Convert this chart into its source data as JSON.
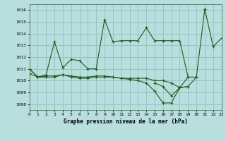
{
  "title": "Graphe pression niveau de la mer (hPa)",
  "bg_color": "#b8dede",
  "grid_color": "#88bbbb",
  "line_color": "#1a5c1a",
  "xlim": [
    0,
    23
  ],
  "ylim": [
    1007.5,
    1016.5
  ],
  "yticks": [
    1008,
    1009,
    1010,
    1011,
    1012,
    1013,
    1014,
    1015,
    1016
  ],
  "xtick_labels": [
    "0",
    "1",
    "2",
    "3",
    "4",
    "5",
    "6",
    "7",
    "8",
    "9",
    "10",
    "11",
    "12",
    "13",
    "14",
    "15",
    "16",
    "17",
    "18",
    "19",
    "20",
    "21",
    "22",
    "23"
  ],
  "series": [
    {
      "x": [
        0,
        1,
        2,
        3,
        4,
        5,
        6,
        7,
        8,
        9,
        10,
        11,
        12,
        13,
        14,
        15,
        16,
        17,
        18,
        19,
        20,
        21,
        22,
        23
      ],
      "y": [
        1011.0,
        1010.3,
        1010.5,
        1013.3,
        1011.1,
        1011.8,
        1011.7,
        1011.0,
        1011.0,
        1015.2,
        1013.3,
        1013.4,
        1013.4,
        1013.4,
        1014.5,
        1013.4,
        1013.4,
        1013.4,
        1013.4,
        1010.3,
        1010.3,
        1016.1,
        1012.9,
        1013.6
      ]
    },
    {
      "x": [
        0,
        1,
        2,
        3,
        4,
        5,
        6,
        7,
        8,
        9,
        10,
        11,
        12,
        13,
        14,
        15,
        16,
        17,
        18,
        19
      ],
      "y": [
        1010.6,
        1010.3,
        1010.3,
        1010.3,
        1010.5,
        1010.3,
        1010.2,
        1010.2,
        1010.3,
        1010.3,
        1010.3,
        1010.2,
        1010.2,
        1010.2,
        1010.2,
        1010.0,
        1010.0,
        1009.8,
        1009.4,
        1010.3
      ]
    },
    {
      "x": [
        0,
        1,
        2,
        3,
        4,
        5,
        6,
        7,
        8,
        9,
        10,
        11,
        12,
        13,
        14,
        15,
        16,
        17,
        18,
        19
      ],
      "y": [
        1011.0,
        1010.3,
        1010.4,
        1010.4,
        1010.5,
        1010.4,
        1010.3,
        1010.3,
        1010.4,
        1010.4,
        1010.3,
        1010.2,
        1010.1,
        1010.0,
        1009.8,
        1009.1,
        1008.1,
        1008.1,
        1009.4,
        1009.5
      ]
    },
    {
      "x": [
        15,
        16,
        17,
        18,
        19,
        20
      ],
      "y": [
        1009.8,
        1009.5,
        1008.7,
        1009.4,
        1009.5,
        1010.3
      ]
    }
  ]
}
